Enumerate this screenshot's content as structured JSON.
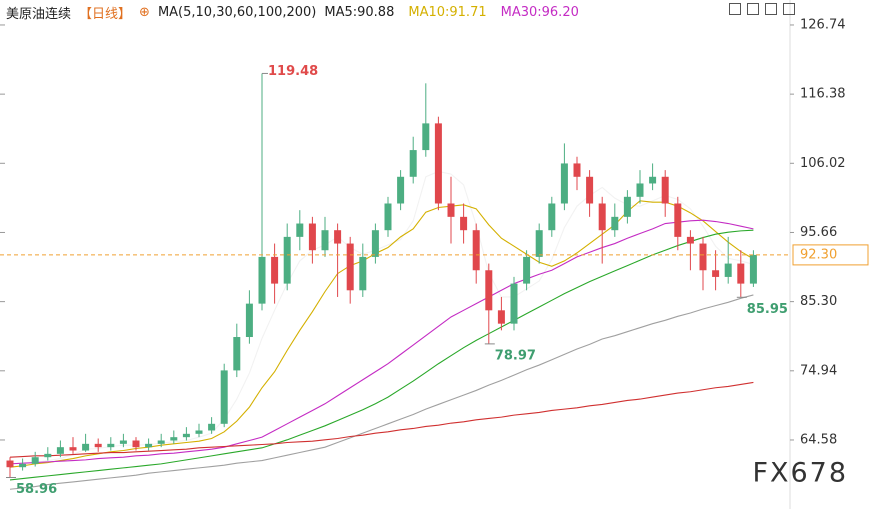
{
  "chart_data": {
    "type": "candlestick",
    "header": {
      "instrument": "美原油连续",
      "period": "【日线】",
      "ma_params": "MA(5,10,30,60,100,200)"
    },
    "watermark": "FX678",
    "categories": [
      null,
      null,
      null,
      null,
      null,
      null,
      null,
      null,
      null,
      null,
      null,
      null,
      null,
      null,
      null,
      null,
      null,
      null,
      null,
      null,
      null,
      null,
      null,
      null,
      null,
      null,
      null,
      null,
      null,
      null,
      null,
      null,
      null,
      null,
      null,
      null,
      null,
      null,
      null,
      null,
      null,
      null,
      null,
      null,
      null,
      null,
      null,
      null,
      null,
      null,
      null,
      null,
      null,
      null,
      null,
      null,
      null,
      null,
      null,
      null
    ],
    "open": [
      61.5,
      60.5,
      61,
      62,
      62.5,
      63.5,
      63,
      64,
      63.5,
      64,
      64.5,
      63.5,
      64,
      64.5,
      65,
      65.5,
      66,
      67,
      75,
      80,
      85,
      92,
      88,
      95,
      97,
      93,
      96,
      94,
      87,
      92,
      96,
      100,
      104,
      108,
      112,
      100,
      98,
      96,
      90,
      84,
      82,
      88,
      92,
      96,
      100,
      106,
      104,
      100,
      96,
      98,
      101,
      103,
      104,
      100,
      95,
      94,
      90,
      89,
      91,
      88
    ],
    "high": [
      62,
      61.8,
      62.8,
      63.5,
      64.5,
      65,
      65.5,
      64.8,
      65,
      65.5,
      65,
      64.8,
      65.5,
      66,
      66.5,
      67,
      68,
      76,
      82,
      87,
      119.48,
      94,
      97,
      99,
      98,
      98,
      97,
      95,
      94,
      97,
      101,
      105,
      110,
      118,
      113,
      104,
      100,
      97,
      91,
      86,
      89,
      93,
      97,
      101,
      109,
      107,
      105,
      101,
      100,
      102,
      105,
      106,
      105,
      101,
      96,
      95,
      93,
      95,
      93,
      93
    ],
    "low": [
      58.96,
      60,
      60.6,
      61.5,
      62,
      62.5,
      62.8,
      62.8,
      63,
      63.5,
      63,
      63,
      63.5,
      64,
      64.5,
      65,
      65.5,
      66.5,
      74,
      79,
      84,
      85,
      87,
      93,
      91,
      92,
      86,
      85,
      86,
      91,
      95,
      99,
      103,
      107,
      99,
      94,
      94,
      88,
      78.97,
      81,
      81,
      87,
      91,
      95,
      99,
      102,
      98,
      91,
      95,
      97,
      100,
      102,
      98,
      93,
      90,
      87,
      87,
      88,
      85.95,
      87.5
    ],
    "close": [
      60.5,
      61,
      62,
      62.5,
      63.5,
      63,
      64,
      63.5,
      64,
      64.5,
      63.5,
      64,
      64.5,
      65,
      65.5,
      66,
      67,
      75,
      80,
      85,
      92,
      88,
      95,
      97,
      93,
      96,
      94,
      87,
      92,
      96,
      100,
      104,
      108,
      112,
      100,
      98,
      96,
      90,
      84,
      82,
      88,
      92,
      96,
      100,
      106,
      104,
      100,
      96,
      98,
      101,
      103,
      104,
      100,
      95,
      94,
      90,
      89,
      91,
      88,
      92.3
    ],
    "up_color": "#4cae82",
    "down_color": "#e0474c",
    "series": [
      {
        "name": "MA5:90.88",
        "color": "#f2f2f2",
        "values": [
          60.5,
          60.8,
          61.2,
          61.5,
          61.8,
          62.4,
          63.2,
          63.3,
          63.6,
          63.8,
          63.8,
          63.9,
          64.1,
          64.3,
          64.5,
          65,
          65.6,
          67.7,
          70.7,
          74.6,
          79.8,
          84,
          88,
          91.4,
          93,
          93.8,
          95,
          93.4,
          92.4,
          93,
          93.8,
          94.6,
          97.4,
          104,
          104.8,
          104.4,
          102.8,
          96.8,
          89.6,
          86,
          86,
          87.2,
          88.4,
          91.6,
          96.4,
          99.6,
          101.2,
          102.4,
          100.8,
          99.8,
          99.6,
          100.4,
          101.2,
          100.6,
          99.2,
          96.6,
          93.6,
          91.8,
          91.4,
          90.88
        ]
      },
      {
        "name": "MA10:91.71",
        "color": "#d4b000",
        "values": [
          60.5,
          60.7,
          61,
          61.2,
          61.5,
          61.8,
          62.2,
          62.5,
          62.8,
          63,
          63.3,
          63.5,
          63.8,
          64,
          64.2,
          64.4,
          64.8,
          65.8,
          67.4,
          69.5,
          72.4,
          74.8,
          78,
          81,
          83.8,
          86.8,
          89.5,
          90.7,
          91.4,
          92.5,
          93.4,
          95,
          96.2,
          98.7,
          99.4,
          99.6,
          99.8,
          99.2,
          96.8,
          94.8,
          93.6,
          92.4,
          91.2,
          90.6,
          91.4,
          92.6,
          94,
          95.4,
          96.8,
          98.8,
          100.4,
          100.2,
          100.2,
          99.6,
          98.6,
          97.4,
          95.8,
          94.2,
          92.8,
          91.71
        ]
      },
      {
        "name": "MA30:96.20",
        "color": "#c42cc4",
        "values": [
          61,
          61.1,
          61.2,
          61.3,
          61.4,
          61.5,
          61.6,
          61.8,
          61.9,
          62,
          62.2,
          62.3,
          62.5,
          62.6,
          62.8,
          63,
          63.2,
          63.5,
          64,
          64.5,
          65,
          66,
          67,
          68,
          69,
          70,
          71.2,
          72.4,
          73.6,
          74.8,
          76,
          77.4,
          78.8,
          80.2,
          81.6,
          83,
          84,
          85,
          86,
          87,
          88,
          88.7,
          89.4,
          90,
          91,
          92,
          92.7,
          93.4,
          94,
          94.8,
          95.5,
          96.2,
          97,
          97.2,
          97.4,
          97.5,
          97.3,
          97,
          96.6,
          96.2
        ]
      },
      {
        "color": "#2aa82a",
        "values": [
          58.6,
          58.8,
          59,
          59.2,
          59.4,
          59.6,
          59.8,
          60,
          60.2,
          60.4,
          60.6,
          60.8,
          61,
          61.3,
          61.6,
          61.9,
          62.2,
          62.5,
          62.8,
          63.1,
          63.4,
          64,
          64.6,
          65.3,
          66,
          66.7,
          67.5,
          68.3,
          69.1,
          70,
          71,
          72.2,
          73.4,
          74.7,
          76,
          77.2,
          78.4,
          79.5,
          80.5,
          81.5,
          82.5,
          83.5,
          84.5,
          85.5,
          86.5,
          87.4,
          88.3,
          89.1,
          89.9,
          90.7,
          91.5,
          92.3,
          93,
          93.7,
          94.3,
          94.9,
          95.4,
          95.7,
          95.9,
          96
        ]
      },
      {
        "color": "#a0a0a0",
        "values": [
          57.2,
          57.4,
          57.6,
          57.9,
          58.1,
          58.3,
          58.5,
          58.7,
          58.9,
          59.1,
          59.3,
          59.6,
          59.8,
          60,
          60.2,
          60.4,
          60.6,
          60.8,
          61.1,
          61.3,
          61.5,
          61.9,
          62.3,
          62.7,
          63.1,
          63.5,
          64.2,
          64.9,
          65.6,
          66.3,
          67,
          67.7,
          68.4,
          69.2,
          69.9,
          70.6,
          71.3,
          72,
          72.8,
          73.5,
          74.3,
          75.1,
          75.8,
          76.6,
          77.4,
          78.2,
          78.9,
          79.7,
          80.2,
          80.8,
          81.4,
          82,
          82.5,
          83.1,
          83.6,
          84.2,
          84.7,
          85.2,
          85.8,
          86.3
        ]
      },
      {
        "color": "#d03030",
        "values": [
          62,
          62.1,
          62.2,
          62.2,
          62.3,
          62.4,
          62.5,
          62.6,
          62.7,
          62.7,
          62.8,
          62.9,
          63,
          63.1,
          63.2,
          63.4,
          63.5,
          63.6,
          63.7,
          63.8,
          63.9,
          64,
          64.2,
          64.3,
          64.4,
          64.6,
          64.8,
          65.1,
          65.3,
          65.6,
          65.8,
          66.1,
          66.3,
          66.6,
          66.8,
          67.1,
          67.3,
          67.6,
          67.8,
          68,
          68.3,
          68.5,
          68.7,
          69,
          69.2,
          69.4,
          69.7,
          69.9,
          70.2,
          70.5,
          70.7,
          71,
          71.3,
          71.6,
          71.8,
          72.1,
          72.4,
          72.6,
          72.9,
          73.2
        ]
      }
    ],
    "current_price": {
      "value": 92.3,
      "label": "92.30"
    },
    "current_color": "#f0a030",
    "ylim": [
      54.24,
      130.48
    ],
    "yticks": [
      126.74,
      116.38,
      106.02,
      95.66,
      {
        "value": 85.3,
        "label": "85.30"
      },
      74.94,
      64.58
    ]
  }
}
